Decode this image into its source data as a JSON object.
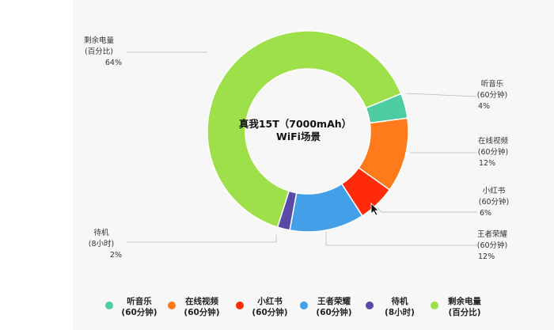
{
  "chart_data": {
    "type": "pie",
    "title": "真我15T（7000mAh）",
    "subtitle": "WiFi场景",
    "segments": [
      {
        "name": "听音乐",
        "unit": "(60分钟)",
        "label": "4%",
        "value": 4,
        "color": "#4ecca3"
      },
      {
        "name": "在线视频",
        "unit": "(60分钟)",
        "label": "12%",
        "value": 12,
        "color": "#ff7a1a"
      },
      {
        "name": "小红书",
        "unit": "(60分钟)",
        "label": "6%",
        "value": 6,
        "color": "#ff2b0a"
      },
      {
        "name": "王者荣耀",
        "unit": "(60分钟)",
        "label": "12%",
        "value": 12,
        "color": "#43a0e8"
      },
      {
        "name": "待机",
        "unit": "(8小时)",
        "label": "2%",
        "value": 2,
        "color": "#5a4aa8"
      },
      {
        "name": "剩余电量",
        "unit": "(百分比)",
        "label": "64%",
        "value": 64,
        "color": "#9ee04a"
      }
    ],
    "legend_position": "bottom"
  }
}
